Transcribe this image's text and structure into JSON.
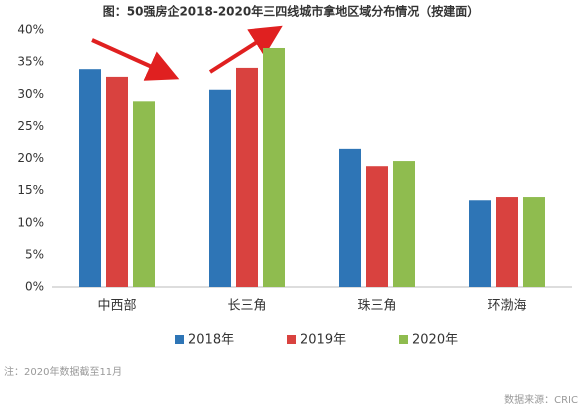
{
  "chart_data": {
    "type": "bar",
    "title": "图：50强房企2018-2020年三四线城市拿地区域分布情况（按建面）",
    "categories": [
      "中西部",
      "长三角",
      "珠三角",
      "环渤海"
    ],
    "series": [
      {
        "name": "2018年",
        "color": "#2e75b6",
        "values": [
          33.9,
          30.7,
          21.5,
          13.5
        ]
      },
      {
        "name": "2019年",
        "color": "#d9423f",
        "values": [
          32.7,
          34.1,
          18.8,
          14.0
        ]
      },
      {
        "name": "2020年",
        "color": "#8fbc4f",
        "values": [
          28.9,
          37.2,
          19.6,
          14.0
        ]
      }
    ],
    "ylim": [
      0,
      40
    ],
    "yticks": [
      {
        "value": 0,
        "label": "0%"
      },
      {
        "value": 5,
        "label": "5%"
      },
      {
        "value": 10,
        "label": "10%"
      },
      {
        "value": 15,
        "label": "15%"
      },
      {
        "value": 20,
        "label": "20%"
      },
      {
        "value": 25,
        "label": "25%"
      },
      {
        "value": 30,
        "label": "30%"
      },
      {
        "value": 35,
        "label": "35%"
      },
      {
        "value": 40,
        "label": "40%"
      }
    ],
    "note": "注：2020年数据截至11月",
    "source": "数据来源：CRIC"
  }
}
